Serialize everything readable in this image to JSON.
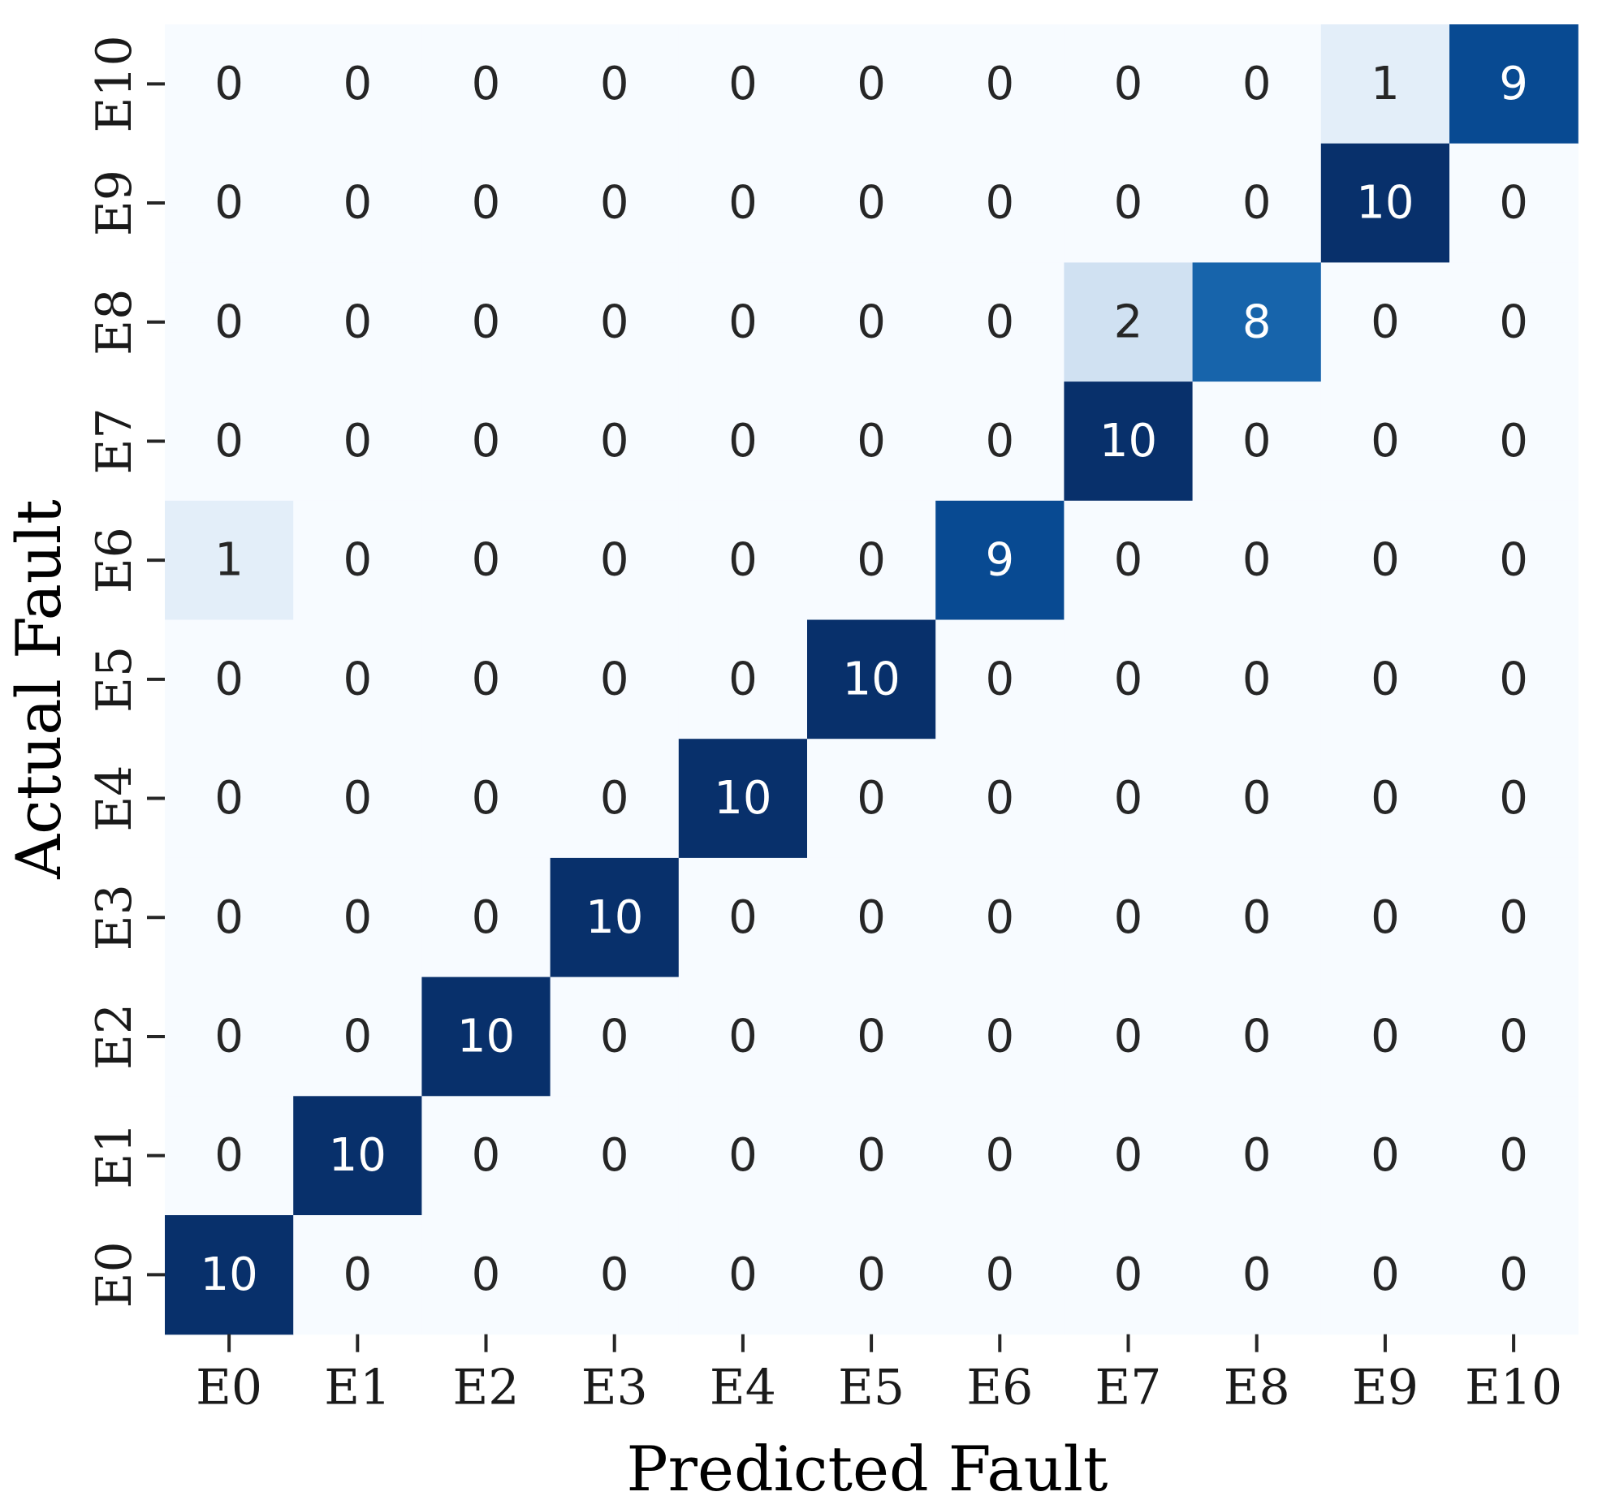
{
  "chart_data": {
    "type": "heatmap",
    "xlabel": "Predicted Fault",
    "ylabel": "Actual Fault",
    "x_categories": [
      "E0",
      "E1",
      "E2",
      "E3",
      "E4",
      "E5",
      "E6",
      "E7",
      "E8",
      "E9",
      "E10"
    ],
    "y_categories_top_to_bottom": [
      "E10",
      "E9",
      "E8",
      "E7",
      "E6",
      "E5",
      "E4",
      "E3",
      "E2",
      "E1",
      "E0"
    ],
    "matrix_rows_top_to_bottom": [
      [
        0,
        0,
        0,
        0,
        0,
        0,
        0,
        0,
        0,
        1,
        9
      ],
      [
        0,
        0,
        0,
        0,
        0,
        0,
        0,
        0,
        0,
        10,
        0
      ],
      [
        0,
        0,
        0,
        0,
        0,
        0,
        0,
        2,
        8,
        0,
        0
      ],
      [
        0,
        0,
        0,
        0,
        0,
        0,
        0,
        10,
        0,
        0,
        0
      ],
      [
        1,
        0,
        0,
        0,
        0,
        0,
        9,
        0,
        0,
        0,
        0
      ],
      [
        0,
        0,
        0,
        0,
        0,
        10,
        0,
        0,
        0,
        0,
        0
      ],
      [
        0,
        0,
        0,
        0,
        10,
        0,
        0,
        0,
        0,
        0,
        0
      ],
      [
        0,
        0,
        0,
        10,
        0,
        0,
        0,
        0,
        0,
        0,
        0
      ],
      [
        0,
        0,
        10,
        0,
        0,
        0,
        0,
        0,
        0,
        0,
        0
      ],
      [
        0,
        10,
        0,
        0,
        0,
        0,
        0,
        0,
        0,
        0,
        0
      ],
      [
        10,
        0,
        0,
        0,
        0,
        0,
        0,
        0,
        0,
        0,
        0
      ]
    ],
    "value_range": [
      0,
      10
    ],
    "colormap": "Blues",
    "colorbar": false,
    "annotations": true
  }
}
